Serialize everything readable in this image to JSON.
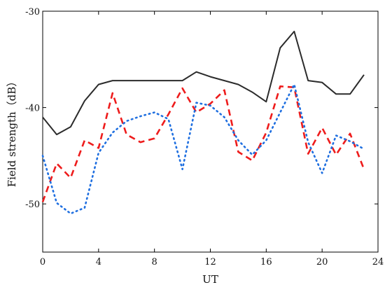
{
  "chart_data": {
    "type": "line",
    "title": "",
    "xlabel": "UT",
    "ylabel": "Field strength（dB）",
    "xlim": [
      0,
      24
    ],
    "ylim": [
      -55,
      -30
    ],
    "xticks": [
      0,
      4,
      8,
      12,
      16,
      20,
      24
    ],
    "yticks": [
      -50,
      -40,
      -30
    ],
    "ytick_labels": [
      "-50",
      "-40",
      "-30"
    ],
    "grid": false,
    "legend": "none",
    "series": [
      {
        "color": "#2b2b2b",
        "style": "solid",
        "x": [
          0,
          1,
          2,
          3,
          4,
          5,
          6,
          7,
          8,
          9,
          10,
          11,
          12,
          13,
          14,
          15,
          16,
          17,
          18,
          19,
          20,
          21,
          22,
          23
        ],
        "y": [
          -41.0,
          -42.8,
          -42.0,
          -39.3,
          -37.6,
          -37.2,
          -37.2,
          -37.2,
          -37.2,
          -37.2,
          -37.2,
          -36.3,
          -36.8,
          -37.2,
          -37.6,
          -38.4,
          -39.4,
          -33.8,
          -32.1,
          -37.2,
          -37.4,
          -38.6,
          -38.6,
          -36.6
        ]
      },
      {
        "color": "#ee1c1c",
        "style": "dashed",
        "x": [
          0,
          1,
          2,
          3,
          4,
          5,
          6,
          7,
          8,
          9,
          10,
          11,
          12,
          13,
          14,
          15,
          16,
          17,
          18,
          19,
          20,
          21,
          22,
          23
        ],
        "y": [
          -49.8,
          -45.8,
          -47.3,
          -43.4,
          -44.2,
          -38.5,
          -42.8,
          -43.6,
          -43.2,
          -40.7,
          -38.0,
          -40.5,
          -39.6,
          -38.2,
          -44.6,
          -45.5,
          -42.6,
          -37.8,
          -37.9,
          -44.8,
          -42.1,
          -44.9,
          -42.7,
          -46.4
        ]
      },
      {
        "color": "#1f6fe0",
        "style": "dotted",
        "x": [
          0,
          1,
          2,
          3,
          4,
          5,
          6,
          7,
          8,
          9,
          10,
          11,
          12,
          13,
          14,
          15,
          16,
          17,
          18,
          19,
          20,
          21,
          22,
          23
        ],
        "y": [
          -45.0,
          -49.9,
          -51.0,
          -50.4,
          -44.7,
          -42.6,
          -41.4,
          -40.9,
          -40.5,
          -41.2,
          -46.4,
          -39.5,
          -39.8,
          -41.0,
          -43.4,
          -44.9,
          -43.4,
          -40.5,
          -37.6,
          -43.6,
          -46.8,
          -42.9,
          -43.5,
          -44.3
        ]
      }
    ]
  }
}
